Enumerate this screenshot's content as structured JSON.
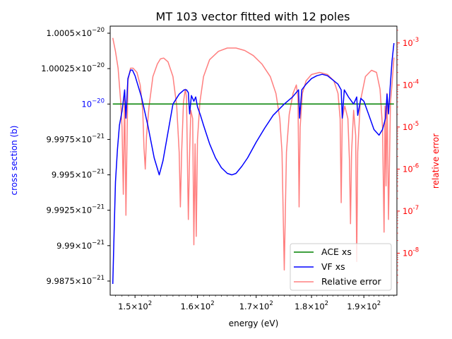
{
  "chart_data": {
    "type": "line",
    "title": "MT 103 vector fitted with 12 poles",
    "xlabel": "energy (eV)",
    "ylabel_left": "cross section (b)",
    "ylabel_right": "relative error",
    "x_scale": "log",
    "xlim": [
      146.2,
      196.6
    ],
    "x_ticks": [
      {
        "value": 150,
        "mant": "1.5",
        "base": "10",
        "exp": "2"
      },
      {
        "value": 160,
        "mant": "1.6",
        "base": "10",
        "exp": "2"
      },
      {
        "value": 170,
        "mant": "1.7",
        "base": "10",
        "exp": "2"
      },
      {
        "value": 180,
        "mant": "1.8",
        "base": "10",
        "exp": "2"
      },
      {
        "value": 190,
        "mant": "1.9",
        "base": "10",
        "exp": "2"
      }
    ],
    "ylim_left": [
      0.99865,
      1.00055
    ],
    "y_ticks_left": [
      {
        "value": 1.0005,
        "mant": "1.0005",
        "base": "10",
        "exp": "−20",
        "color": "black"
      },
      {
        "value": 1.00025,
        "mant": "1.00025",
        "base": "10",
        "exp": "−20",
        "color": "black"
      },
      {
        "value": 1.0,
        "mant": "",
        "base": "10",
        "exp": "−20",
        "color": "blue"
      },
      {
        "value": 0.99975,
        "mant": "9.9975",
        "base": "10",
        "exp": "−21",
        "color": "black"
      },
      {
        "value": 0.9995,
        "mant": "9.995",
        "base": "10",
        "exp": "−21",
        "color": "black"
      },
      {
        "value": 0.99925,
        "mant": "9.9925",
        "base": "10",
        "exp": "−21",
        "color": "black"
      },
      {
        "value": 0.999,
        "mant": "9.99",
        "base": "10",
        "exp": "−21",
        "color": "black"
      },
      {
        "value": 0.99875,
        "mant": "9.9875",
        "base": "10",
        "exp": "−21",
        "color": "black"
      }
    ],
    "y_scale_right": "log",
    "ylim_right_exp": [
      -9.0,
      -2.6
    ],
    "y_ticks_right": [
      {
        "exp": -3,
        "base": "10",
        "label": "−3"
      },
      {
        "exp": -4,
        "base": "10",
        "label": "−4"
      },
      {
        "exp": -5,
        "base": "10",
        "label": "−5"
      },
      {
        "exp": -6,
        "base": "10",
        "label": "−6"
      },
      {
        "exp": -7,
        "base": "10",
        "label": "−7"
      },
      {
        "exp": -8,
        "base": "10",
        "label": "−8"
      }
    ],
    "legend_position": "lower-right",
    "series": [
      {
        "name": "ACE xs",
        "color": "#008000",
        "axis": "left",
        "points": [
          [
            146.6,
            1.0
          ],
          [
            196.0,
            1.0
          ]
        ]
      },
      {
        "name": "VF xs",
        "color": "#0000ff",
        "axis": "left",
        "points": [
          [
            146.6,
            0.99873
          ],
          [
            146.8,
            0.9991
          ],
          [
            147.0,
            0.99945
          ],
          [
            147.3,
            0.99968
          ],
          [
            147.6,
            0.99985
          ],
          [
            148.0,
            0.99995
          ],
          [
            148.4,
            1.0001
          ],
          [
            148.6,
            0.9999
          ],
          [
            148.9,
            1.00018
          ],
          [
            149.3,
            1.00024
          ],
          [
            149.6,
            1.00024
          ],
          [
            150.0,
            1.0002
          ],
          [
            151.0,
            1.00005
          ],
          [
            152.0,
            0.99985
          ],
          [
            153.0,
            0.99962
          ],
          [
            153.8,
            0.9995
          ],
          [
            154.4,
            0.9996
          ],
          [
            155.0,
            0.99975
          ],
          [
            156.0,
            1.0
          ],
          [
            157.0,
            1.00007
          ],
          [
            157.8,
            1.0001
          ],
          [
            158.2,
            1.0001
          ],
          [
            158.5,
            1.00008
          ],
          [
            158.7,
            0.99993
          ],
          [
            159.0,
            1.00006
          ],
          [
            159.4,
            1.00002
          ],
          [
            159.7,
            1.00005
          ],
          [
            160.0,
            0.99998
          ],
          [
            160.5,
            0.99992
          ],
          [
            161.0,
            0.99985
          ],
          [
            162.0,
            0.99972
          ],
          [
            163.0,
            0.99962
          ],
          [
            164.0,
            0.99955
          ],
          [
            165.0,
            0.99951
          ],
          [
            165.8,
            0.9995
          ],
          [
            166.5,
            0.99951
          ],
          [
            167.5,
            0.99956
          ],
          [
            168.5,
            0.99962
          ],
          [
            170.0,
            0.99973
          ],
          [
            171.5,
            0.99983
          ],
          [
            173.0,
            0.99992
          ],
          [
            175.0,
            1.0
          ],
          [
            176.5,
            1.00005
          ],
          [
            177.6,
            1.0001
          ],
          [
            177.8,
            0.9999
          ],
          [
            178.2,
            1.0001
          ],
          [
            179.0,
            1.00014
          ],
          [
            180.0,
            1.00018
          ],
          [
            181.0,
            1.0002
          ],
          [
            182.0,
            1.00021
          ],
          [
            183.0,
            1.0002
          ],
          [
            184.0,
            1.00017
          ],
          [
            185.0,
            1.00014
          ],
          [
            185.6,
            1.0001
          ],
          [
            185.8,
            0.9999
          ],
          [
            186.2,
            1.0001
          ],
          [
            187.0,
            1.00005
          ],
          [
            188.0,
            1.0
          ],
          [
            188.6,
            1.00005
          ],
          [
            188.8,
            0.99992
          ],
          [
            189.4,
            1.00004
          ],
          [
            190.0,
            1.00002
          ],
          [
            191.0,
            0.99992
          ],
          [
            192.0,
            0.99982
          ],
          [
            193.0,
            0.99978
          ],
          [
            193.7,
            0.99982
          ],
          [
            194.3,
            0.9999
          ],
          [
            194.6,
            1.00007
          ],
          [
            194.9,
            0.99993
          ],
          [
            195.2,
            1.0001
          ],
          [
            195.6,
            1.0003
          ],
          [
            196.0,
            1.00043
          ]
        ]
      },
      {
        "name": "Relative error",
        "color": "#ff0000",
        "opacity": 0.5,
        "axis": "right",
        "points": [
          [
            146.6,
            -2.88
          ],
          [
            147.0,
            -3.2
          ],
          [
            147.4,
            -3.6
          ],
          [
            147.8,
            -4.4
          ],
          [
            148.0,
            -5.0
          ],
          [
            148.2,
            -6.6
          ],
          [
            148.4,
            -4.2
          ],
          [
            148.6,
            -7.1
          ],
          [
            148.9,
            -3.9
          ],
          [
            149.3,
            -3.6
          ],
          [
            149.7,
            -3.6
          ],
          [
            150.3,
            -3.7
          ],
          [
            150.8,
            -4.0
          ],
          [
            151.2,
            -4.6
          ],
          [
            151.4,
            -5.5
          ],
          [
            151.6,
            -6.0
          ],
          [
            151.8,
            -5.2
          ],
          [
            152.2,
            -4.5
          ],
          [
            152.8,
            -3.8
          ],
          [
            153.5,
            -3.5
          ],
          [
            154.0,
            -3.38
          ],
          [
            154.5,
            -3.36
          ],
          [
            155.2,
            -3.45
          ],
          [
            156.0,
            -3.8
          ],
          [
            156.6,
            -4.5
          ],
          [
            157.0,
            -5.6
          ],
          [
            157.2,
            -6.9
          ],
          [
            157.4,
            -5.6
          ],
          [
            157.7,
            -4.4
          ],
          [
            158.0,
            -4.1
          ],
          [
            158.2,
            -4.3
          ],
          [
            158.4,
            -6.4
          ],
          [
            158.5,
            -7.2
          ],
          [
            158.7,
            -5.6
          ],
          [
            158.9,
            -4.6
          ],
          [
            159.2,
            -4.8
          ],
          [
            159.4,
            -7.8
          ],
          [
            159.6,
            -5.4
          ],
          [
            159.8,
            -7.6
          ],
          [
            160.0,
            -5.3
          ],
          [
            160.4,
            -4.4
          ],
          [
            161.0,
            -3.8
          ],
          [
            162.0,
            -3.4
          ],
          [
            163.5,
            -3.2
          ],
          [
            165.0,
            -3.12
          ],
          [
            166.5,
            -3.12
          ],
          [
            168.0,
            -3.18
          ],
          [
            169.5,
            -3.3
          ],
          [
            171.0,
            -3.5
          ],
          [
            172.5,
            -3.8
          ],
          [
            173.5,
            -4.2
          ],
          [
            174.2,
            -4.8
          ],
          [
            174.6,
            -5.6
          ],
          [
            175.0,
            -8.4
          ],
          [
            175.4,
            -5.6
          ],
          [
            175.9,
            -4.7
          ],
          [
            176.6,
            -4.2
          ],
          [
            177.2,
            -4.0
          ],
          [
            177.5,
            -4.3
          ],
          [
            177.7,
            -6.9
          ],
          [
            177.9,
            -5.0
          ],
          [
            178.3,
            -4.2
          ],
          [
            179.0,
            -3.9
          ],
          [
            180.0,
            -3.75
          ],
          [
            181.5,
            -3.7
          ],
          [
            183.0,
            -3.75
          ],
          [
            184.2,
            -3.9
          ],
          [
            185.0,
            -4.2
          ],
          [
            185.4,
            -4.8
          ],
          [
            185.6,
            -6.8
          ],
          [
            185.8,
            -4.8
          ],
          [
            186.3,
            -4.5
          ],
          [
            186.9,
            -4.8
          ],
          [
            187.2,
            -5.8
          ],
          [
            187.4,
            -7.3
          ],
          [
            187.6,
            -5.6
          ],
          [
            188.0,
            -4.6
          ],
          [
            188.4,
            -5.2
          ],
          [
            188.6,
            -8.2
          ],
          [
            188.8,
            -5.6
          ],
          [
            189.3,
            -4.4
          ],
          [
            190.3,
            -3.8
          ],
          [
            191.5,
            -3.65
          ],
          [
            192.5,
            -3.7
          ],
          [
            193.2,
            -4.1
          ],
          [
            193.7,
            -5.0
          ],
          [
            194.0,
            -7.5
          ],
          [
            194.2,
            -4.5
          ],
          [
            194.4,
            -6.4
          ],
          [
            194.6,
            -4.2
          ],
          [
            194.9,
            -7.2
          ],
          [
            195.3,
            -4.4
          ],
          [
            195.6,
            -4.0
          ],
          [
            196.0,
            -3.35
          ]
        ]
      }
    ]
  }
}
